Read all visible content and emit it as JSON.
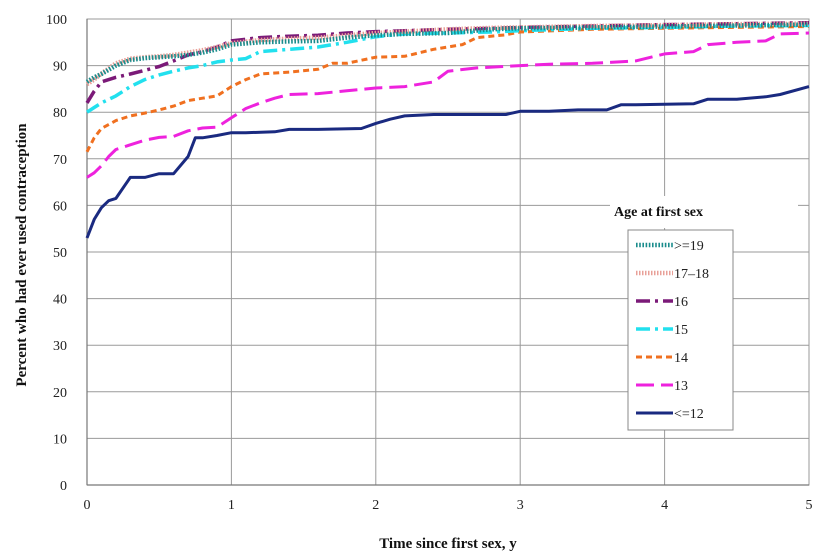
{
  "chart_data": {
    "type": "line",
    "title": "",
    "xlabel": "Time since first sex, y",
    "ylabel": "Percent who had ever used contraception",
    "xlim": [
      0,
      5
    ],
    "ylim": [
      0,
      100
    ],
    "x_ticks": [
      "0",
      "1",
      "2",
      "3",
      "4",
      "5"
    ],
    "y_ticks": [
      "0",
      "10",
      "20",
      "30",
      "40",
      "50",
      "60",
      "70",
      "80",
      "90",
      "100"
    ],
    "grid": true,
    "legend_title": "Age at first sex",
    "legend_position": "right",
    "series": [
      {
        "name": ">=19",
        "color": "#1a8c8c",
        "style": "dotted-thick",
        "points": [
          [
            0,
            86.5
          ],
          [
            0.05,
            87.5
          ],
          [
            0.1,
            88.2
          ],
          [
            0.2,
            90
          ],
          [
            0.3,
            91.2
          ],
          [
            0.4,
            91.6
          ],
          [
            0.5,
            91.8
          ],
          [
            0.6,
            92
          ],
          [
            0.7,
            92.3
          ],
          [
            0.8,
            92.8
          ],
          [
            0.9,
            93.5
          ],
          [
            1,
            94.5
          ],
          [
            1.2,
            95
          ],
          [
            1.4,
            95.2
          ],
          [
            1.6,
            95.3
          ],
          [
            1.8,
            96
          ],
          [
            2,
            96.5
          ],
          [
            2.2,
            96.8
          ],
          [
            2.5,
            97
          ],
          [
            2.8,
            97.8
          ],
          [
            3,
            98
          ],
          [
            3.5,
            98.2
          ],
          [
            4,
            98.4
          ],
          [
            4.5,
            98.6
          ],
          [
            5,
            98.8
          ]
        ]
      },
      {
        "name": "17–18",
        "color": "#e8a098",
        "style": "hatched-thick",
        "points": [
          [
            0,
            86
          ],
          [
            0.05,
            87
          ],
          [
            0.1,
            88.3
          ],
          [
            0.2,
            90.5
          ],
          [
            0.3,
            91.5
          ],
          [
            0.4,
            91.8
          ],
          [
            0.5,
            92
          ],
          [
            0.6,
            92.3
          ],
          [
            0.7,
            92.8
          ],
          [
            0.8,
            93.3
          ],
          [
            0.9,
            94
          ],
          [
            1,
            94.8
          ],
          [
            1.2,
            95.5
          ],
          [
            1.4,
            95.8
          ],
          [
            1.6,
            96
          ],
          [
            1.8,
            96.5
          ],
          [
            2,
            97
          ],
          [
            2.2,
            97.3
          ],
          [
            2.5,
            97.8
          ],
          [
            2.8,
            98.1
          ],
          [
            3,
            98.2
          ],
          [
            3.5,
            98.5
          ],
          [
            4,
            98.7
          ],
          [
            4.5,
            98.9
          ],
          [
            5,
            99
          ]
        ]
      },
      {
        "name": "16",
        "color": "#7b1a78",
        "style": "dashdot",
        "points": [
          [
            0,
            82
          ],
          [
            0.05,
            84.5
          ],
          [
            0.1,
            86.5
          ],
          [
            0.2,
            87.5
          ],
          [
            0.3,
            88.2
          ],
          [
            0.4,
            89
          ],
          [
            0.5,
            89.8
          ],
          [
            0.6,
            91
          ],
          [
            0.7,
            92.3
          ],
          [
            0.8,
            93
          ],
          [
            0.9,
            94
          ],
          [
            1,
            95.3
          ],
          [
            1.2,
            96
          ],
          [
            1.4,
            96.3
          ],
          [
            1.6,
            96.5
          ],
          [
            1.8,
            97
          ],
          [
            2,
            97.3
          ],
          [
            2.2,
            97.5
          ],
          [
            2.5,
            97.8
          ],
          [
            2.8,
            98
          ],
          [
            3,
            98.2
          ],
          [
            3.5,
            98.5
          ],
          [
            4,
            98.8
          ],
          [
            4.5,
            99
          ],
          [
            5,
            99.2
          ]
        ]
      },
      {
        "name": "15",
        "color": "#22e0ee",
        "style": "dashdot",
        "points": [
          [
            0,
            80
          ],
          [
            0.05,
            81
          ],
          [
            0.1,
            82
          ],
          [
            0.2,
            83.5
          ],
          [
            0.3,
            85.5
          ],
          [
            0.4,
            87
          ],
          [
            0.5,
            88
          ],
          [
            0.6,
            88.8
          ],
          [
            0.7,
            89.5
          ],
          [
            0.8,
            90
          ],
          [
            0.9,
            90.8
          ],
          [
            1,
            91.2
          ],
          [
            1.1,
            91.5
          ],
          [
            1.2,
            93
          ],
          [
            1.4,
            93.5
          ],
          [
            1.6,
            94
          ],
          [
            1.8,
            95
          ],
          [
            2,
            96.2
          ],
          [
            2.2,
            96.8
          ],
          [
            2.5,
            97
          ],
          [
            2.8,
            97.2
          ],
          [
            3,
            97.5
          ],
          [
            3.5,
            98
          ],
          [
            4,
            98.2
          ],
          [
            4.5,
            98.5
          ],
          [
            5,
            98.6
          ]
        ]
      },
      {
        "name": "14",
        "color": "#f07020",
        "style": "dashed",
        "points": [
          [
            0,
            71.5
          ],
          [
            0.05,
            74.5
          ],
          [
            0.1,
            76.5
          ],
          [
            0.2,
            78.2
          ],
          [
            0.3,
            79.2
          ],
          [
            0.4,
            79.8
          ],
          [
            0.5,
            80.5
          ],
          [
            0.6,
            81.3
          ],
          [
            0.7,
            82.5
          ],
          [
            0.8,
            83
          ],
          [
            0.9,
            83.5
          ],
          [
            1,
            85.5
          ],
          [
            1.1,
            87
          ],
          [
            1.2,
            88.2
          ],
          [
            1.4,
            88.6
          ],
          [
            1.6,
            89.2
          ],
          [
            1.7,
            90.5
          ],
          [
            1.8,
            90.5
          ],
          [
            2,
            91.8
          ],
          [
            2.2,
            92
          ],
          [
            2.4,
            93.5
          ],
          [
            2.6,
            94.5
          ],
          [
            2.7,
            96
          ],
          [
            2.9,
            96.6
          ],
          [
            3,
            97.2
          ],
          [
            3.5,
            97.8
          ],
          [
            4,
            98
          ],
          [
            4.5,
            98.2
          ],
          [
            5,
            98.4
          ]
        ]
      },
      {
        "name": "13",
        "color": "#ee22dd",
        "style": "longdash",
        "points": [
          [
            0,
            66
          ],
          [
            0.05,
            67
          ],
          [
            0.1,
            68.5
          ],
          [
            0.15,
            70.5
          ],
          [
            0.2,
            72
          ],
          [
            0.3,
            73
          ],
          [
            0.4,
            74
          ],
          [
            0.5,
            74.6
          ],
          [
            0.6,
            74.8
          ],
          [
            0.7,
            76
          ],
          [
            0.8,
            76.6
          ],
          [
            0.9,
            76.8
          ],
          [
            1,
            78.8
          ],
          [
            1.1,
            80.8
          ],
          [
            1.2,
            82
          ],
          [
            1.3,
            83
          ],
          [
            1.4,
            83.8
          ],
          [
            1.6,
            84
          ],
          [
            1.8,
            84.6
          ],
          [
            2,
            85.2
          ],
          [
            2.2,
            85.5
          ],
          [
            2.4,
            86.5
          ],
          [
            2.5,
            88.8
          ],
          [
            2.7,
            89.5
          ],
          [
            3,
            90
          ],
          [
            3.2,
            90.3
          ],
          [
            3.5,
            90.5
          ],
          [
            3.8,
            91
          ],
          [
            4,
            92.5
          ],
          [
            4.2,
            93
          ],
          [
            4.3,
            94.5
          ],
          [
            4.5,
            95
          ],
          [
            4.7,
            95.3
          ],
          [
            4.8,
            96.8
          ],
          [
            5,
            97
          ]
        ]
      },
      {
        "name": "<=12",
        "color": "#1a2a80",
        "style": "solid",
        "points": [
          [
            0,
            53
          ],
          [
            0.05,
            57
          ],
          [
            0.1,
            59.5
          ],
          [
            0.15,
            61
          ],
          [
            0.2,
            61.5
          ],
          [
            0.3,
            66
          ],
          [
            0.4,
            66
          ],
          [
            0.5,
            66.8
          ],
          [
            0.6,
            66.8
          ],
          [
            0.7,
            70.5
          ],
          [
            0.75,
            74.5
          ],
          [
            0.8,
            74.5
          ],
          [
            0.9,
            75
          ],
          [
            1,
            75.6
          ],
          [
            1.1,
            75.6
          ],
          [
            1.3,
            75.8
          ],
          [
            1.4,
            76.3
          ],
          [
            1.6,
            76.3
          ],
          [
            1.9,
            76.5
          ],
          [
            2,
            77.6
          ],
          [
            2.1,
            78.5
          ],
          [
            2.2,
            79.2
          ],
          [
            2.4,
            79.5
          ],
          [
            2.6,
            79.5
          ],
          [
            2.9,
            79.5
          ],
          [
            3,
            80.2
          ],
          [
            3.2,
            80.2
          ],
          [
            3.4,
            80.5
          ],
          [
            3.6,
            80.5
          ],
          [
            3.7,
            81.6
          ],
          [
            3.8,
            81.6
          ],
          [
            4,
            81.7
          ],
          [
            4.2,
            81.8
          ],
          [
            4.3,
            82.8
          ],
          [
            4.5,
            82.8
          ],
          [
            4.7,
            83.3
          ],
          [
            4.8,
            83.8
          ],
          [
            5,
            85.5
          ]
        ]
      }
    ]
  }
}
